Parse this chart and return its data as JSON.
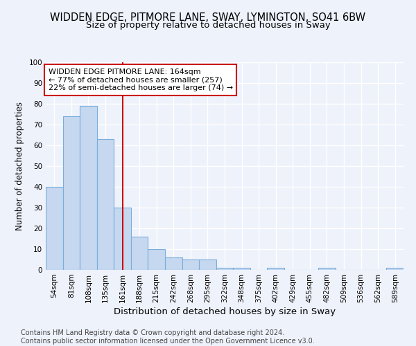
{
  "title": "WIDDEN EDGE, PITMORE LANE, SWAY, LYMINGTON, SO41 6BW",
  "subtitle": "Size of property relative to detached houses in Sway",
  "xlabel": "Distribution of detached houses by size in Sway",
  "ylabel": "Number of detached properties",
  "bins": [
    "54sqm",
    "81sqm",
    "108sqm",
    "135sqm",
    "161sqm",
    "188sqm",
    "215sqm",
    "242sqm",
    "268sqm",
    "295sqm",
    "322sqm",
    "348sqm",
    "375sqm",
    "402sqm",
    "429sqm",
    "455sqm",
    "482sqm",
    "509sqm",
    "536sqm",
    "562sqm",
    "589sqm"
  ],
  "values": [
    40,
    74,
    79,
    63,
    30,
    16,
    10,
    6,
    5,
    5,
    1,
    1,
    0,
    1,
    0,
    0,
    1,
    0,
    0,
    0,
    1
  ],
  "bar_color": "#c5d8f0",
  "bar_edge_color": "#7aaddb",
  "vline_x_index": 4,
  "vline_color": "#cc0000",
  "annotation_text": "WIDDEN EDGE PITMORE LANE: 164sqm\n← 77% of detached houses are smaller (257)\n22% of semi-detached houses are larger (74) →",
  "annotation_box_color": "#ffffff",
  "annotation_box_edge": "#cc0000",
  "ylim": [
    0,
    100
  ],
  "yticks": [
    0,
    10,
    20,
    30,
    40,
    50,
    60,
    70,
    80,
    90,
    100
  ],
  "background_color": "#eef2fb",
  "grid_color": "#ffffff",
  "footer_text": "Contains HM Land Registry data © Crown copyright and database right 2024.\nContains public sector information licensed under the Open Government Licence v3.0.",
  "title_fontsize": 10.5,
  "subtitle_fontsize": 9.5,
  "xlabel_fontsize": 9.5,
  "ylabel_fontsize": 8.5,
  "tick_fontsize": 7.5,
  "annotation_fontsize": 8,
  "footer_fontsize": 7
}
